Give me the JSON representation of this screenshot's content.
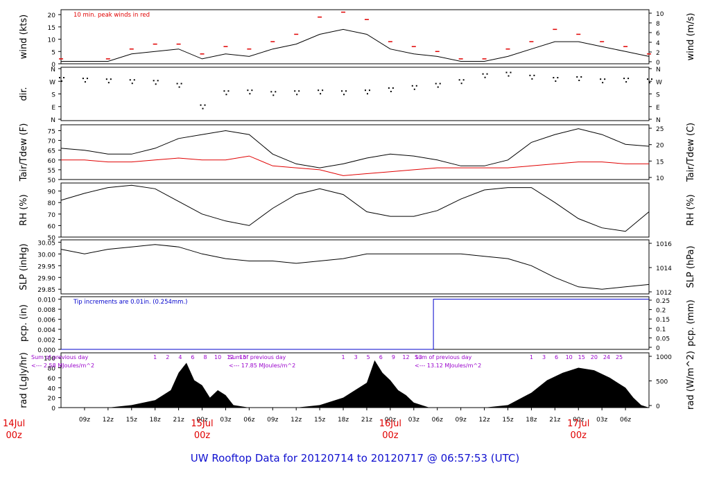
{
  "footer": {
    "title": "UW Rooftop Data for 20120714  to  20120717 @ 06:57:53  (UTC)",
    "title_color": "#1010d0"
  },
  "colors": {
    "axis": "#000000",
    "series_primary": "#000000",
    "dewpoint": "#e00000",
    "peak_wind": "#e00000",
    "precip": "#0000cc",
    "radiation_note": "#9900cc",
    "date_label": "#e00000"
  },
  "time_axis": {
    "tick_labels": [
      "09z",
      "12z",
      "15z",
      "18z",
      "21z",
      "00z",
      "03z",
      "06z",
      "09z",
      "12z",
      "15z",
      "18z",
      "21z",
      "00z",
      "03z",
      "06z",
      "09z",
      "12z",
      "15z",
      "18z",
      "21z",
      "00z",
      "03z",
      "06z"
    ],
    "date_labels": [
      {
        "top": "14Jul",
        "bottom": "00z"
      },
      {
        "top": "15Jul",
        "bottom": "00z"
      },
      {
        "top": "16Jul",
        "bottom": "00z"
      },
      {
        "top": "17Jul",
        "bottom": "00z"
      }
    ]
  },
  "chart_data": [
    {
      "id": "wind",
      "type": "line",
      "ylabel": "wind (kts)",
      "ylabel_right": "wind (m/s)",
      "yticks": [
        0,
        5,
        10,
        15,
        20
      ],
      "yticks_right": [
        0,
        2,
        4,
        6,
        8,
        10
      ],
      "ylim": [
        0,
        22
      ],
      "annotation": "10 min. peak winds in red",
      "series": [
        {
          "values": [
            [
              6,
              1
            ],
            [
              12,
              1
            ],
            [
              15,
              4
            ],
            [
              18,
              5
            ],
            [
              21,
              6
            ],
            [
              24,
              2
            ],
            [
              27,
              4
            ],
            [
              30,
              3
            ],
            [
              33,
              6
            ],
            [
              36,
              8
            ],
            [
              39,
              12
            ],
            [
              42,
              14
            ],
            [
              45,
              12
            ],
            [
              48,
              6
            ],
            [
              51,
              4
            ],
            [
              54,
              3
            ],
            [
              57,
              1
            ],
            [
              60,
              1
            ],
            [
              63,
              3
            ],
            [
              66,
              6
            ],
            [
              69,
              9
            ],
            [
              72,
              9
            ],
            [
              75,
              7
            ],
            [
              78,
              5
            ],
            [
              81,
              3
            ]
          ]
        },
        {
          "values": [
            [
              6,
              2
            ],
            [
              12,
              2
            ],
            [
              15,
              6
            ],
            [
              18,
              8
            ],
            [
              21,
              8
            ],
            [
              24,
              4
            ],
            [
              27,
              7
            ],
            [
              30,
              6
            ],
            [
              33,
              9
            ],
            [
              36,
              12
            ],
            [
              39,
              19
            ],
            [
              42,
              21
            ],
            [
              45,
              18
            ],
            [
              48,
              9
            ],
            [
              51,
              7
            ],
            [
              54,
              5
            ],
            [
              57,
              2
            ],
            [
              60,
              2
            ],
            [
              63,
              6
            ],
            [
              66,
              9
            ],
            [
              69,
              14
            ],
            [
              72,
              12
            ],
            [
              75,
              9
            ],
            [
              78,
              7
            ],
            [
              81,
              4
            ]
          ]
        }
      ]
    },
    {
      "id": "dir",
      "type": "scatter",
      "ylabel": "dir.",
      "yticks_labels": [
        "N",
        "W",
        "S",
        "E",
        "N"
      ],
      "series": [
        {
          "values": [
            [
              6,
              285
            ],
            [
              9,
              280
            ],
            [
              12,
              275
            ],
            [
              15,
              270
            ],
            [
              18,
              265
            ],
            [
              21,
              245
            ],
            [
              24,
              100
            ],
            [
              27,
              195
            ],
            [
              30,
              200
            ],
            [
              33,
              190
            ],
            [
              36,
              195
            ],
            [
              39,
              200
            ],
            [
              42,
              195
            ],
            [
              45,
              200
            ],
            [
              48,
              215
            ],
            [
              51,
              230
            ],
            [
              54,
              245
            ],
            [
              57,
              270
            ],
            [
              60,
              310
            ],
            [
              63,
              320
            ],
            [
              66,
              300
            ],
            [
              69,
              285
            ],
            [
              72,
              290
            ],
            [
              75,
              275
            ],
            [
              78,
              280
            ],
            [
              81,
              275
            ]
          ]
        }
      ]
    },
    {
      "id": "temp",
      "type": "line",
      "ylabel": "Tair/Tdew (F)",
      "ylabel_right": "Tair/Tdew (C)",
      "yticks": [
        50,
        55,
        60,
        65,
        70,
        75
      ],
      "yticks_right": [
        10,
        15,
        20,
        25
      ],
      "ylim": [
        50,
        78
      ],
      "series": [
        {
          "values": [
            [
              6,
              66
            ],
            [
              9,
              65
            ],
            [
              12,
              63
            ],
            [
              15,
              63
            ],
            [
              18,
              66
            ],
            [
              21,
              71
            ],
            [
              24,
              73
            ],
            [
              27,
              75
            ],
            [
              30,
              73
            ],
            [
              33,
              63
            ],
            [
              36,
              58
            ],
            [
              39,
              56
            ],
            [
              42,
              58
            ],
            [
              45,
              61
            ],
            [
              48,
              63
            ],
            [
              51,
              62
            ],
            [
              54,
              60
            ],
            [
              57,
              57
            ],
            [
              60,
              57
            ],
            [
              63,
              60
            ],
            [
              66,
              69
            ],
            [
              69,
              73
            ],
            [
              72,
              76
            ],
            [
              75,
              73
            ],
            [
              78,
              68
            ],
            [
              81,
              67
            ]
          ]
        },
        {
          "values": [
            [
              6,
              60
            ],
            [
              9,
              60
            ],
            [
              12,
              59
            ],
            [
              15,
              59
            ],
            [
              18,
              60
            ],
            [
              21,
              61
            ],
            [
              24,
              60
            ],
            [
              27,
              60
            ],
            [
              30,
              62
            ],
            [
              33,
              57
            ],
            [
              36,
              56
            ],
            [
              39,
              55
            ],
            [
              42,
              52
            ],
            [
              45,
              53
            ],
            [
              48,
              54
            ],
            [
              51,
              55
            ],
            [
              54,
              56
            ],
            [
              57,
              56
            ],
            [
              60,
              56
            ],
            [
              63,
              56
            ],
            [
              66,
              57
            ],
            [
              69,
              58
            ],
            [
              72,
              59
            ],
            [
              75,
              59
            ],
            [
              78,
              58
            ],
            [
              81,
              58
            ]
          ]
        }
      ]
    },
    {
      "id": "rh",
      "type": "line",
      "ylabel": "RH (%)",
      "ylabel_right": "RH (%)",
      "yticks": [
        50,
        60,
        70,
        80,
        90
      ],
      "ylim": [
        50,
        97
      ],
      "series": [
        {
          "values": [
            [
              6,
              82
            ],
            [
              9,
              88
            ],
            [
              12,
              93
            ],
            [
              15,
              95
            ],
            [
              18,
              92
            ],
            [
              21,
              81
            ],
            [
              24,
              70
            ],
            [
              27,
              64
            ],
            [
              30,
              60
            ],
            [
              33,
              75
            ],
            [
              36,
              87
            ],
            [
              39,
              92
            ],
            [
              42,
              87
            ],
            [
              45,
              72
            ],
            [
              48,
              68
            ],
            [
              51,
              68
            ],
            [
              54,
              73
            ],
            [
              57,
              83
            ],
            [
              60,
              91
            ],
            [
              63,
              93
            ],
            [
              66,
              93
            ],
            [
              69,
              80
            ],
            [
              72,
              66
            ],
            [
              75,
              58
            ],
            [
              78,
              55
            ],
            [
              81,
              72
            ]
          ]
        }
      ]
    },
    {
      "id": "slp",
      "type": "line",
      "ylabel": "SLP (inHg)",
      "ylabel_right": "SLP (hPa)",
      "yticks": [
        29.85,
        29.9,
        29.95,
        30.0,
        30.05
      ],
      "yticks_labels": [
        "29.85",
        "29.90",
        "29.95",
        "30.00",
        "30.05"
      ],
      "yticks_right": [
        1012,
        1014,
        1016
      ],
      "ylim": [
        29.83,
        30.06
      ],
      "series": [
        {
          "values": [
            [
              6,
              30.02
            ],
            [
              9,
              30.0
            ],
            [
              12,
              30.02
            ],
            [
              15,
              30.03
            ],
            [
              18,
              30.04
            ],
            [
              21,
              30.03
            ],
            [
              24,
              30.0
            ],
            [
              27,
              29.98
            ],
            [
              30,
              29.97
            ],
            [
              33,
              29.97
            ],
            [
              36,
              29.96
            ],
            [
              39,
              29.97
            ],
            [
              42,
              29.98
            ],
            [
              45,
              30.0
            ],
            [
              48,
              30.0
            ],
            [
              51,
              30.0
            ],
            [
              54,
              30.0
            ],
            [
              57,
              30.0
            ],
            [
              60,
              29.99
            ],
            [
              63,
              29.98
            ],
            [
              66,
              29.95
            ],
            [
              69,
              29.9
            ],
            [
              72,
              29.86
            ],
            [
              75,
              29.85
            ],
            [
              78,
              29.86
            ],
            [
              81,
              29.87
            ]
          ]
        }
      ]
    },
    {
      "id": "pcp",
      "type": "line",
      "ylabel": "pcp. (in)",
      "ylabel_right": "pcp. (mm)",
      "yticks": [
        0,
        0.002,
        0.004,
        0.006,
        0.008,
        0.01
      ],
      "yticks_labels": [
        "0.000",
        "0.002",
        "0.004",
        "0.006",
        "0.008",
        "0.010"
      ],
      "yticks_right": [
        0,
        0.05,
        0.1,
        0.15,
        0.2,
        0.25
      ],
      "ylim": [
        0,
        0.0105
      ],
      "annotation": "Tip increments are 0.01in. (0.254mm.)",
      "series": [
        {
          "values": [
            [
              6,
              0
            ],
            [
              53.5,
              0
            ],
            [
              53.5,
              0.01
            ],
            [
              81,
              0.01
            ]
          ]
        }
      ]
    },
    {
      "id": "rad",
      "type": "area",
      "ylabel": "rad (Lgly/hr)",
      "ylabel_right": "rad (W/m^2)",
      "yticks": [
        0,
        20,
        40,
        60,
        80,
        100
      ],
      "yticks_right": [
        0,
        500,
        1000
      ],
      "ylim": [
        0,
        110
      ],
      "series": [
        {
          "values": [
            [
              6,
              0
            ],
            [
              12,
              0
            ],
            [
              15,
              5
            ],
            [
              18,
              15
            ],
            [
              20,
              35
            ],
            [
              21,
              70
            ],
            [
              22,
              90
            ],
            [
              23,
              55
            ],
            [
              24,
              45
            ],
            [
              25,
              20
            ],
            [
              26,
              35
            ],
            [
              27,
              25
            ],
            [
              28,
              5
            ],
            [
              30,
              0
            ],
            [
              36,
              0
            ],
            [
              39,
              5
            ],
            [
              42,
              20
            ],
            [
              45,
              50
            ],
            [
              46,
              95
            ],
            [
              47,
              70
            ],
            [
              48,
              55
            ],
            [
              49,
              35
            ],
            [
              50,
              25
            ],
            [
              51,
              10
            ],
            [
              53,
              0
            ],
            [
              60,
              0
            ],
            [
              63,
              5
            ],
            [
              66,
              30
            ],
            [
              68,
              55
            ],
            [
              70,
              70
            ],
            [
              72,
              80
            ],
            [
              74,
              75
            ],
            [
              76,
              60
            ],
            [
              78,
              40
            ],
            [
              79,
              20
            ],
            [
              80,
              5
            ],
            [
              81,
              0
            ]
          ]
        }
      ]
    }
  ],
  "radiation_notes": [
    {
      "line1": "Sum of previous day",
      "line2": "<--- 2.58 MJoules/m^2"
    },
    {
      "line1": "Sum of previous day",
      "line2": "<--- 17.85 MJoules/m^2"
    },
    {
      "line1": "Sum of previous day",
      "line2": "<--- 13.12 MJoules/m^2"
    }
  ],
  "radiation_hours": [
    {
      "day": 15,
      "labels": [
        "1",
        "2",
        "4",
        "6",
        "8",
        "10",
        "12",
        "15"
      ]
    },
    {
      "day": 16,
      "labels": [
        "1",
        "3",
        "5",
        "6",
        "9",
        "12",
        "13"
      ]
    },
    {
      "day": 17,
      "labels": [
        "1",
        "3",
        "6",
        "10",
        "15",
        "20",
        "24",
        "25"
      ]
    }
  ]
}
